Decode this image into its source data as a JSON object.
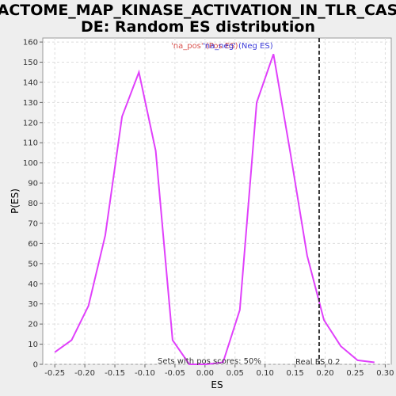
{
  "chart_data": {
    "type": "line",
    "title_line1": "REACTOME_MAP_KINASE_ACTIVATION_IN_TLR_CASCA",
    "title_line2": "DE: Random ES distribution",
    "xlabel": "ES",
    "ylabel": "P(ES)",
    "xlim": [
      -0.27,
      0.31
    ],
    "ylim": [
      0,
      162
    ],
    "x_ticks": [
      -0.25,
      -0.2,
      -0.15,
      -0.1,
      -0.05,
      0.0,
      0.05,
      0.1,
      0.15,
      0.2,
      0.25,
      0.3
    ],
    "x_tick_labels": [
      "-0.25",
      "-0.20",
      "-0.15",
      "-0.10",
      "-0.05",
      "0.00",
      "0.05",
      "0.10",
      "0.15",
      "0.20",
      "0.25",
      "0.30"
    ],
    "y_ticks": [
      0,
      10,
      20,
      30,
      40,
      50,
      60,
      70,
      80,
      90,
      100,
      110,
      120,
      130,
      140,
      150,
      160
    ],
    "y_tick_labels": [
      "0",
      "10",
      "20",
      "30",
      "40",
      "50",
      "60",
      "70",
      "80",
      "90",
      "100",
      "110",
      "120",
      "130",
      "140",
      "150",
      "160"
    ],
    "legend_pos": "'na_pos' (Pos ES)",
    "legend_neg": "'na_neg' (Neg ES)",
    "series": [
      {
        "color": "#e040fb",
        "x": [
          -0.25,
          -0.222,
          -0.194,
          -0.166,
          -0.138,
          -0.11,
          -0.082,
          -0.054,
          -0.026,
          0.002,
          0.03,
          0.058,
          0.086,
          0.114,
          0.142,
          0.17,
          0.198,
          0.226,
          0.254,
          0.282
        ],
        "y": [
          6,
          12,
          29,
          64,
          123,
          145,
          106,
          12,
          0,
          0,
          1,
          27,
          130,
          154,
          105,
          54,
          22,
          9,
          2,
          1
        ]
      }
    ],
    "real_es": 0.19,
    "real_es_label": "Real ES 0.2",
    "annotation": "Sets with pos scores: 50%",
    "grid": true
  }
}
